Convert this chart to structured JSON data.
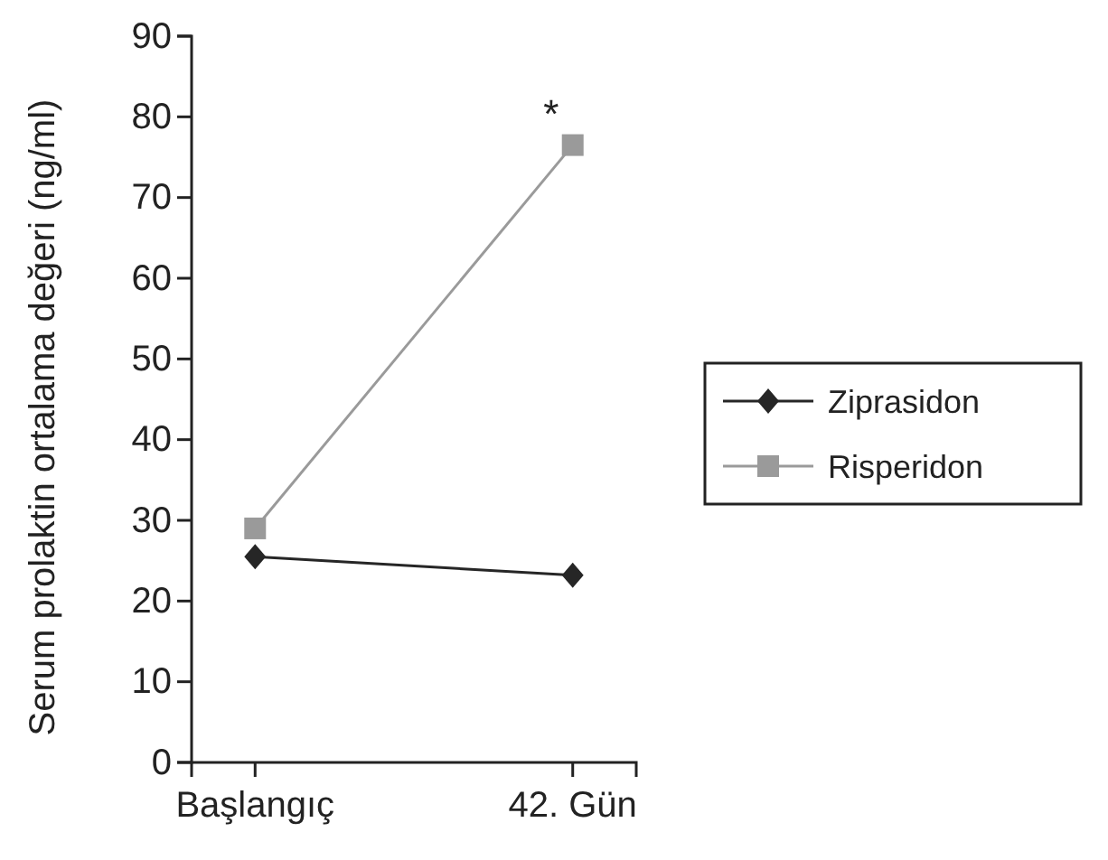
{
  "chart_data": {
    "type": "line",
    "ylabel": "Serum prolaktin ortalama değeri (ng/ml)",
    "categories": [
      "Başlangıç",
      "42. Gün"
    ],
    "series": [
      {
        "name": "Ziprasidon",
        "color": "#262626",
        "values": [
          25.5,
          23.2
        ],
        "marker": "diamond"
      },
      {
        "name": "Risperidon",
        "color": "#9a9a9a",
        "values": [
          29,
          76.5
        ],
        "marker": "square"
      }
    ],
    "ylim": [
      0,
      90
    ],
    "yticks": [
      0,
      10,
      20,
      30,
      40,
      50,
      60,
      70,
      80,
      90
    ],
    "legend": "right",
    "annotations": [
      {
        "text": "*",
        "x": "42. Gün",
        "y": 76.5
      }
    ]
  }
}
